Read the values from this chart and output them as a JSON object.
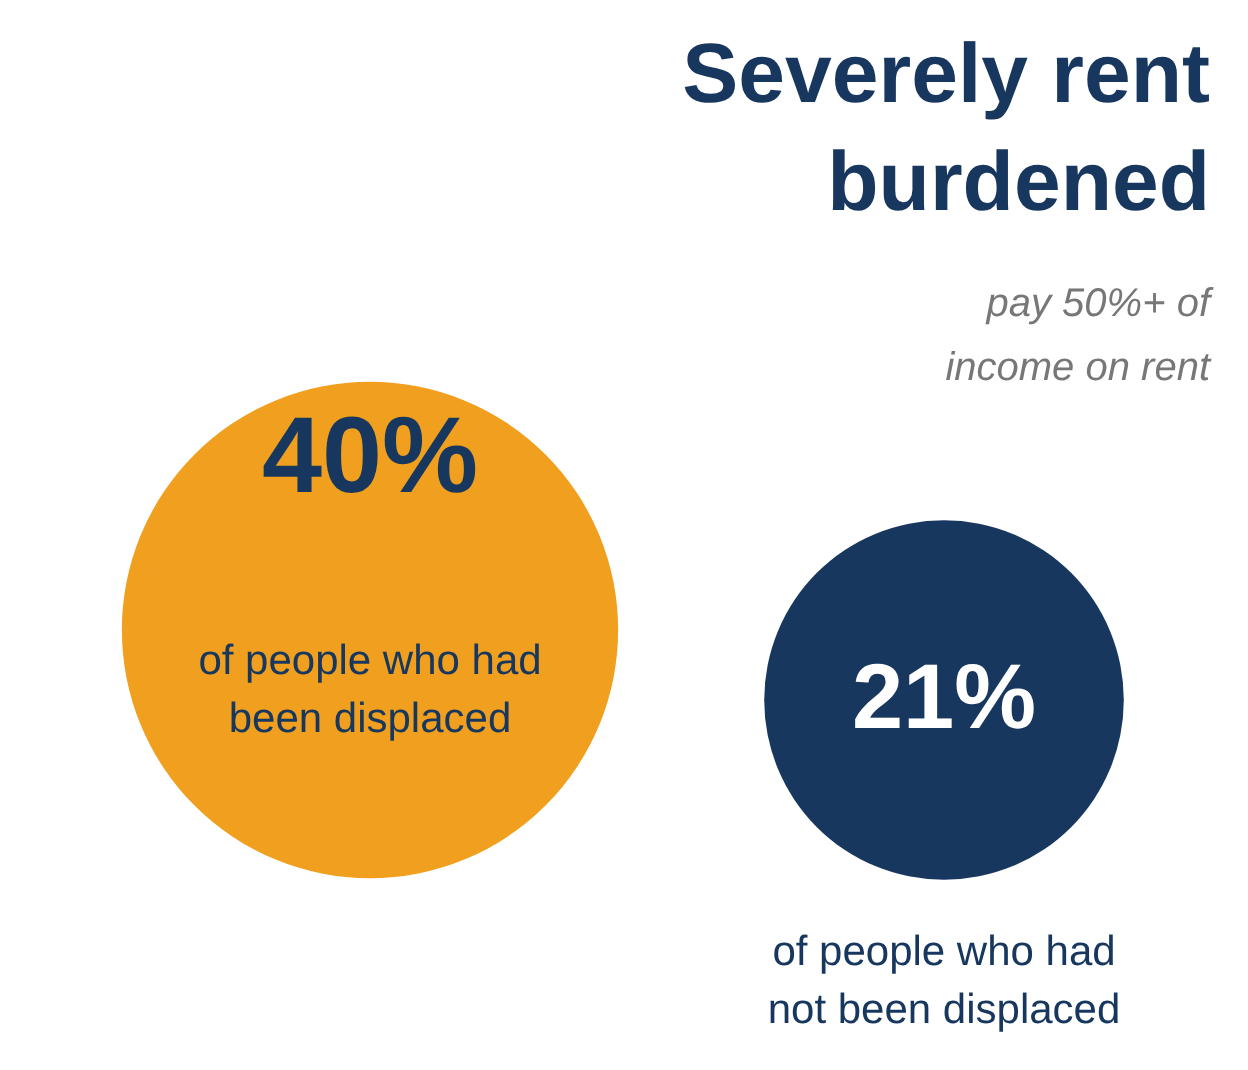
{
  "chart_data": {
    "type": "other",
    "title": "Severely rent burdened",
    "subtitle": "pay 50%+ of income on rent",
    "categories": [
      "of people who had been displaced",
      "of people who had not been displaced"
    ],
    "values": [
      40,
      21
    ],
    "value_labels": [
      "40%",
      "21%"
    ],
    "colors": [
      "#f0a01e",
      "#17375e"
    ],
    "data_labels": true
  }
}
